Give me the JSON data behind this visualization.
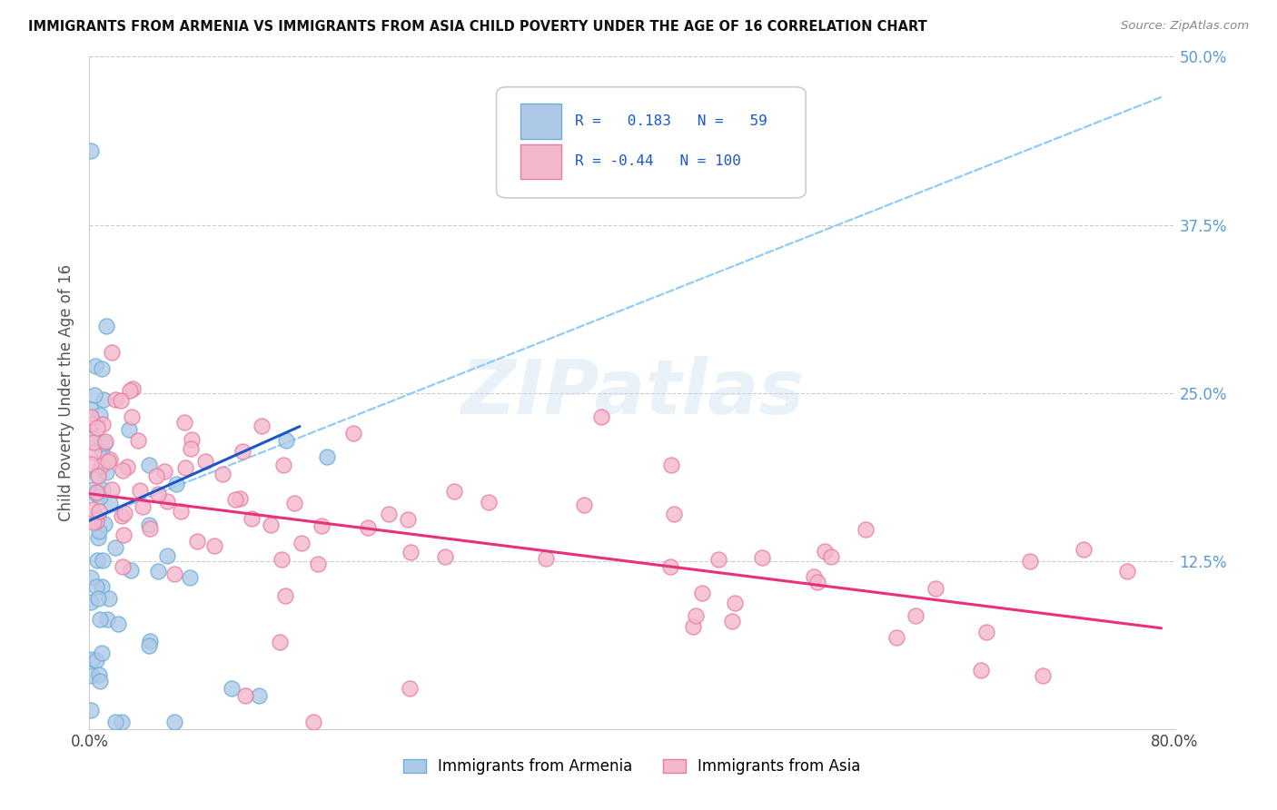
{
  "title": "IMMIGRANTS FROM ARMENIA VS IMMIGRANTS FROM ASIA CHILD POVERTY UNDER THE AGE OF 16 CORRELATION CHART",
  "source": "Source: ZipAtlas.com",
  "ylabel": "Child Poverty Under the Age of 16",
  "watermark": "ZIPatlas",
  "armenia_R": 0.183,
  "armenia_N": 59,
  "asia_R": -0.44,
  "asia_N": 100,
  "xlim": [
    0.0,
    0.8
  ],
  "ylim": [
    0.0,
    0.5
  ],
  "xticks": [
    0.0,
    0.2,
    0.4,
    0.6,
    0.8
  ],
  "xtick_labels": [
    "0.0%",
    "",
    "",
    "",
    "80.0%"
  ],
  "ytick_labels": [
    "",
    "12.5%",
    "25.0%",
    "37.5%",
    "50.0%"
  ],
  "yticks": [
    0.0,
    0.125,
    0.25,
    0.375,
    0.5
  ],
  "armenia_face": "#aec9e8",
  "armenia_edge": "#6baed6",
  "asia_face": "#f4b8cc",
  "asia_edge": "#e87aa0",
  "blue_line_color": "#1a56cc",
  "pink_line_color": "#e8317a",
  "dashed_line_color": "#90CAF9",
  "arm_line_x0": 0.0,
  "arm_line_x1": 0.155,
  "arm_line_y0": 0.155,
  "arm_line_y1": 0.225,
  "asia_line_x0": 0.0,
  "asia_line_x1": 0.79,
  "asia_line_y0": 0.175,
  "asia_line_y1": 0.075,
  "dash_line_x0": 0.0,
  "dash_line_x1": 0.79,
  "dash_line_y0": 0.155,
  "dash_line_y1": 0.47
}
